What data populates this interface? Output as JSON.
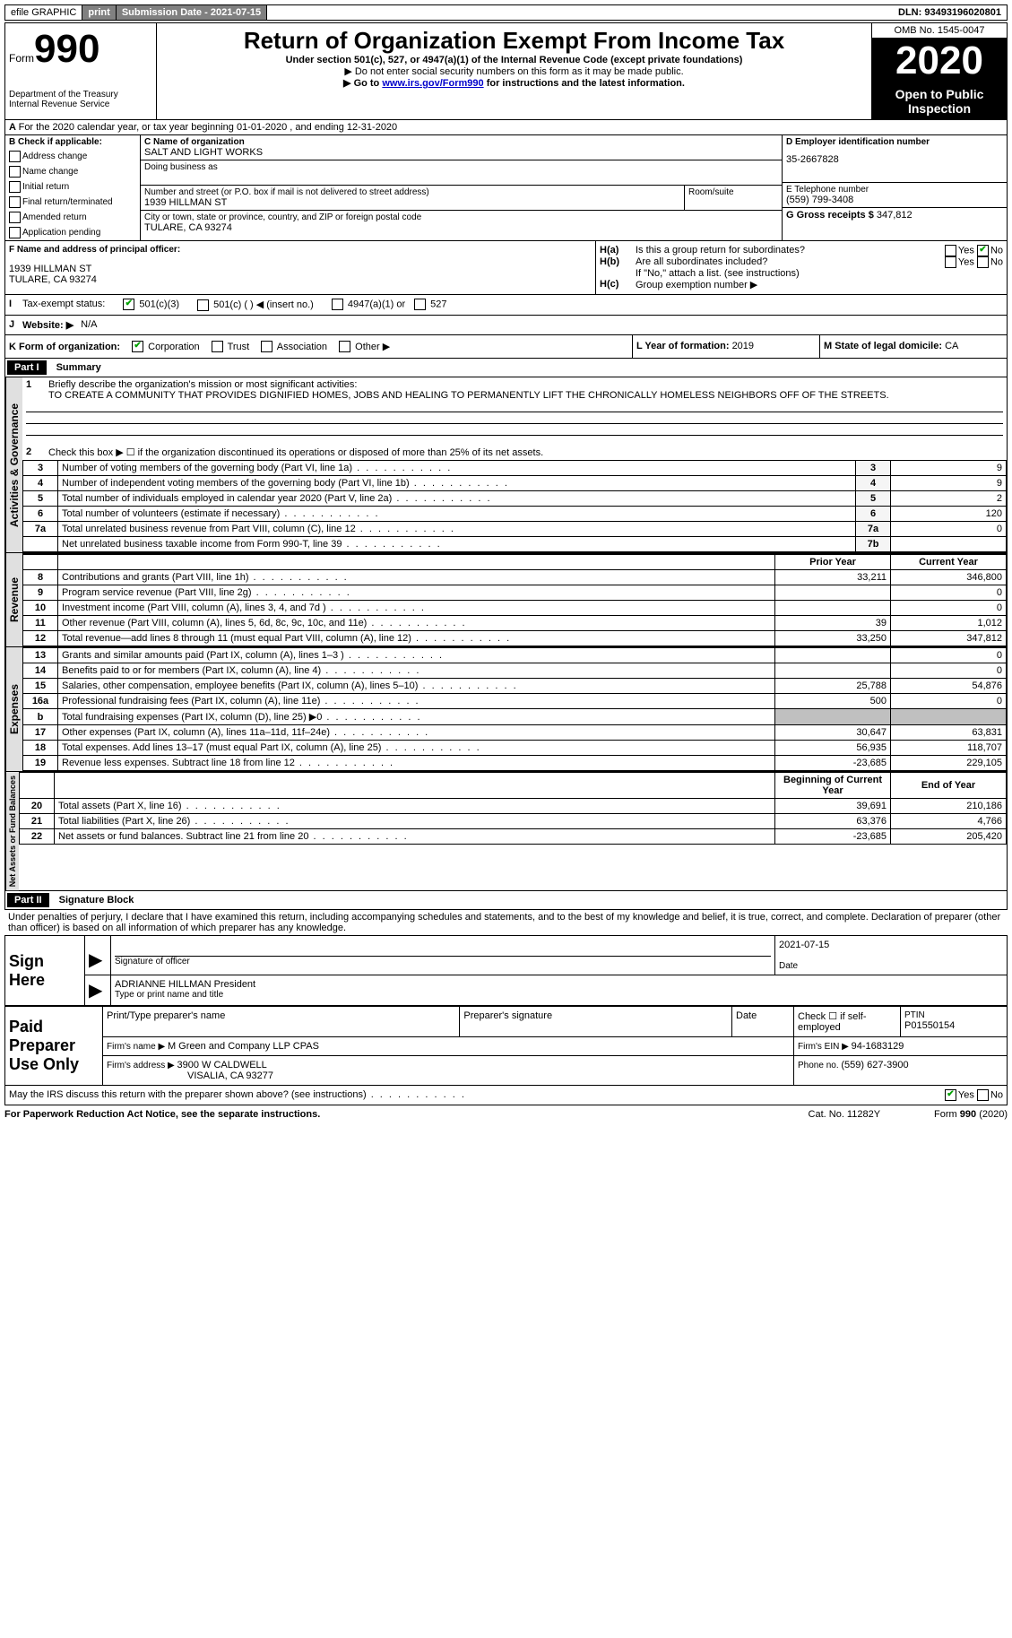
{
  "top_bar": {
    "efile": "efile GRAPHIC",
    "print": "print",
    "sub_date_label": "Submission Date - ",
    "sub_date": "2021-07-15",
    "dln_label": "DLN: ",
    "dln": "93493196020801"
  },
  "header": {
    "form_label": "Form",
    "form_num": "990",
    "dept": "Department of the Treasury\nInternal Revenue Service",
    "title": "Return of Organization Exempt From Income Tax",
    "sub1": "Under section 501(c), 527, or 4947(a)(1) of the Internal Revenue Code (except private foundations)",
    "sub2": "▶ Do not enter social security numbers on this form as it may be made public.",
    "sub3_pre": "▶ Go to ",
    "sub3_link": "www.irs.gov/Form990",
    "sub3_post": " for instructions and the latest information.",
    "omb": "OMB No. 1545-0047",
    "year": "2020",
    "open": "Open to Public Inspection"
  },
  "line_a": "For the 2020 calendar year, or tax year beginning 01-01-2020   , and ending 12-31-2020",
  "box_b": {
    "label": "B Check if applicable:",
    "opts": [
      "Address change",
      "Name change",
      "Initial return",
      "Final return/terminated",
      "Amended return",
      "Application pending"
    ]
  },
  "box_c": {
    "name_label": "C Name of organization",
    "name": "SALT AND LIGHT WORKS",
    "dba_label": "Doing business as",
    "addr_label": "Number and street (or P.O. box if mail is not delivered to street address)",
    "room_label": "Room/suite",
    "addr": "1939 HILLMAN ST",
    "city_label": "City or town, state or province, country, and ZIP or foreign postal code",
    "city": "TULARE, CA  93274"
  },
  "box_d": {
    "label": "D Employer identification number",
    "val": "35-2667828"
  },
  "box_e": {
    "label": "E Telephone number",
    "val": "(559) 799-3408"
  },
  "box_g": {
    "label": "G Gross receipts $ ",
    "val": "347,812"
  },
  "box_f": {
    "label": "F Name and address of principal officer:",
    "addr1": "1939 HILLMAN ST",
    "addr2": "TULARE, CA  93274"
  },
  "box_h": {
    "a": "Is this a group return for subordinates?",
    "b": "Are all subordinates included?",
    "note": "If \"No,\" attach a list. (see instructions)",
    "c": "Group exemption number ▶"
  },
  "box_i": {
    "label": "Tax-exempt status:",
    "opts": [
      "501(c)(3)",
      "501(c) (  ) ◀ (insert no.)",
      "4947(a)(1) or",
      "527"
    ]
  },
  "box_j": {
    "label": "Website: ▶",
    "val": "N/A"
  },
  "box_k": {
    "label": "K Form of organization:",
    "opts": [
      "Corporation",
      "Trust",
      "Association",
      "Other ▶"
    ]
  },
  "box_l": {
    "label": "L Year of formation: ",
    "val": "2019"
  },
  "box_m": {
    "label": "M State of legal domicile: ",
    "val": "CA"
  },
  "part1": {
    "header": "Part I",
    "title": "Summary",
    "l1_label": "Briefly describe the organization's mission or most significant activities:",
    "l1_text": "TO CREATE A COMMUNITY THAT PROVIDES DIGNIFIED HOMES, JOBS AND HEALING TO PERMANENTLY LIFT THE CHRONICALLY HOMELESS NEIGHBORS OFF OF THE STREETS.",
    "l2": "Check this box ▶ ☐  if the organization discontinued its operations or disposed of more than 25% of its net assets.",
    "sections": {
      "gov": "Activities & Governance",
      "rev": "Revenue",
      "exp": "Expenses",
      "net": "Net Assets or Fund Balances"
    },
    "col_prior": "Prior Year",
    "col_curr": "Current Year",
    "col_beg": "Beginning of Current Year",
    "col_end": "End of Year",
    "rows_gov": [
      {
        "n": "3",
        "d": "Number of voting members of the governing body (Part VI, line 1a)",
        "b": "3",
        "v": "9"
      },
      {
        "n": "4",
        "d": "Number of independent voting members of the governing body (Part VI, line 1b)",
        "b": "4",
        "v": "9"
      },
      {
        "n": "5",
        "d": "Total number of individuals employed in calendar year 2020 (Part V, line 2a)",
        "b": "5",
        "v": "2"
      },
      {
        "n": "6",
        "d": "Total number of volunteers (estimate if necessary)",
        "b": "6",
        "v": "120"
      },
      {
        "n": "7a",
        "d": "Total unrelated business revenue from Part VIII, column (C), line 12",
        "b": "7a",
        "v": "0"
      },
      {
        "n": "",
        "d": "Net unrelated business taxable income from Form 990-T, line 39",
        "b": "7b",
        "v": ""
      }
    ],
    "rows_rev": [
      {
        "n": "8",
        "d": "Contributions and grants (Part VIII, line 1h)",
        "p": "33,211",
        "c": "346,800"
      },
      {
        "n": "9",
        "d": "Program service revenue (Part VIII, line 2g)",
        "p": "",
        "c": "0"
      },
      {
        "n": "10",
        "d": "Investment income (Part VIII, column (A), lines 3, 4, and 7d )",
        "p": "",
        "c": "0"
      },
      {
        "n": "11",
        "d": "Other revenue (Part VIII, column (A), lines 5, 6d, 8c, 9c, 10c, and 11e)",
        "p": "39",
        "c": "1,012"
      },
      {
        "n": "12",
        "d": "Total revenue—add lines 8 through 11 (must equal Part VIII, column (A), line 12)",
        "p": "33,250",
        "c": "347,812"
      }
    ],
    "rows_exp": [
      {
        "n": "13",
        "d": "Grants and similar amounts paid (Part IX, column (A), lines 1–3 )",
        "p": "",
        "c": "0"
      },
      {
        "n": "14",
        "d": "Benefits paid to or for members (Part IX, column (A), line 4)",
        "p": "",
        "c": "0"
      },
      {
        "n": "15",
        "d": "Salaries, other compensation, employee benefits (Part IX, column (A), lines 5–10)",
        "p": "25,788",
        "c": "54,876"
      },
      {
        "n": "16a",
        "d": "Professional fundraising fees (Part IX, column (A), line 11e)",
        "p": "500",
        "c": "0"
      },
      {
        "n": "b",
        "d": "Total fundraising expenses (Part IX, column (D), line 25) ▶0",
        "p": "shade",
        "c": "shade"
      },
      {
        "n": "17",
        "d": "Other expenses (Part IX, column (A), lines 11a–11d, 11f–24e)",
        "p": "30,647",
        "c": "63,831"
      },
      {
        "n": "18",
        "d": "Total expenses. Add lines 13–17 (must equal Part IX, column (A), line 25)",
        "p": "56,935",
        "c": "118,707"
      },
      {
        "n": "19",
        "d": "Revenue less expenses. Subtract line 18 from line 12",
        "p": "-23,685",
        "c": "229,105"
      }
    ],
    "rows_net": [
      {
        "n": "20",
        "d": "Total assets (Part X, line 16)",
        "p": "39,691",
        "c": "210,186"
      },
      {
        "n": "21",
        "d": "Total liabilities (Part X, line 26)",
        "p": "63,376",
        "c": "4,766"
      },
      {
        "n": "22",
        "d": "Net assets or fund balances. Subtract line 21 from line 20",
        "p": "-23,685",
        "c": "205,420"
      }
    ]
  },
  "part2": {
    "header": "Part II",
    "title": "Signature Block",
    "decl": "Under penalties of perjury, I declare that I have examined this return, including accompanying schedules and statements, and to the best of my knowledge and belief, it is true, correct, and complete. Declaration of preparer (other than officer) is based on all information of which preparer has any knowledge."
  },
  "sign": {
    "label": "Sign Here",
    "sig_label": "Signature of officer",
    "date_label": "Date",
    "date": "2021-07-15",
    "name": "ADRIANNE HILLMAN  President",
    "name_label": "Type or print name and title"
  },
  "preparer": {
    "label": "Paid Preparer Use Only",
    "h1": "Print/Type preparer's name",
    "h2": "Preparer's signature",
    "h3": "Date",
    "h4_a": "Check ☐ if self-employed",
    "h4_b": "PTIN",
    "ptin": "P01550154",
    "firm_name_label": "Firm's name   ▶ ",
    "firm_name": "M Green and Company LLP CPAS",
    "firm_ein_label": "Firm's EIN ▶ ",
    "firm_ein": "94-1683129",
    "firm_addr_label": "Firm's address ▶ ",
    "firm_addr1": "3900 W CALDWELL",
    "firm_addr2": "VISALIA, CA  93277",
    "phone_label": "Phone no. ",
    "phone": "(559) 627-3900"
  },
  "footer": {
    "q": "May the IRS discuss this return with the preparer shown above? (see instructions)",
    "pra": "For Paperwork Reduction Act Notice, see the separate instructions.",
    "cat": "Cat. No. 11282Y",
    "form": "Form 990 (2020)"
  }
}
